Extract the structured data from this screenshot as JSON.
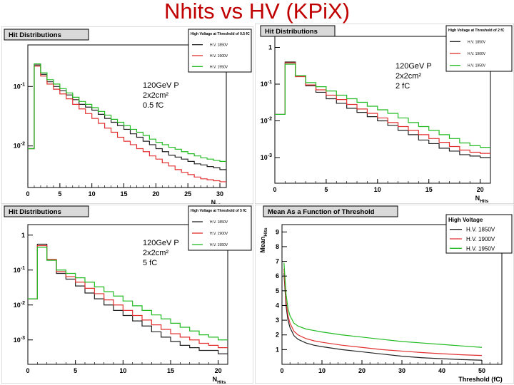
{
  "slide": {
    "title": "Nhits vs HV (KPiX)"
  },
  "panels": [
    {
      "annotation": [
        "120GeV P",
        "2x2cm²",
        "0.5 fC"
      ]
    },
    {
      "annotation": [
        "120GeV P",
        "2x2cm²",
        "2 fC"
      ]
    },
    {
      "annotation": [
        "120GeV P",
        "2x2cm²",
        "5 fC"
      ]
    },
    {
      "annotation": []
    }
  ],
  "chart_data": [
    {
      "type": "line",
      "title": "Hit Distributions",
      "legend_title": "High Voltage at Threshold of 0.5 fC",
      "legend_placement": "top-right",
      "xlabel": "N_Hits",
      "ylabel": "",
      "yscale": "log",
      "xlim": [
        0,
        31
      ],
      "ylim": [
        0.002,
        0.5
      ],
      "xticks": [
        "0",
        "5",
        "10",
        "15",
        "20",
        "25",
        "30"
      ],
      "yticks": [
        "10^-1",
        "10^-2"
      ],
      "series": [
        {
          "name": "H.V. 1850V",
          "color": "#222222",
          "x": [
            0,
            1,
            2,
            3,
            4,
            5,
            6,
            7,
            8,
            9,
            10,
            11,
            12,
            13,
            14,
            15,
            16,
            17,
            18,
            19,
            20,
            21,
            22,
            23,
            24,
            25,
            26,
            27,
            28,
            29,
            30
          ],
          "values": [
            0.009,
            0.23,
            0.16,
            0.12,
            0.1,
            0.085,
            0.072,
            0.06,
            0.05,
            0.045,
            0.04,
            0.034,
            0.029,
            0.025,
            0.022,
            0.019,
            0.016,
            0.014,
            0.012,
            0.0105,
            0.009,
            0.008,
            0.007,
            0.0065,
            0.006,
            0.0055,
            0.005,
            0.0048,
            0.0045,
            0.0043,
            0.004
          ]
        },
        {
          "name": "H.V. 1900V",
          "color": "#e23030",
          "x": [
            0,
            1,
            2,
            3,
            4,
            5,
            6,
            7,
            8,
            9,
            10,
            11,
            12,
            13,
            14,
            15,
            16,
            17,
            18,
            19,
            20,
            21,
            22,
            23,
            24,
            25,
            26,
            27,
            28,
            29,
            30
          ],
          "values": [
            0.009,
            0.22,
            0.15,
            0.11,
            0.09,
            0.075,
            0.062,
            0.05,
            0.042,
            0.035,
            0.029,
            0.024,
            0.02,
            0.017,
            0.014,
            0.012,
            0.0105,
            0.009,
            0.008,
            0.0068,
            0.006,
            0.0052,
            0.0046,
            0.004,
            0.0036,
            0.0033,
            0.003,
            0.0028,
            0.0027,
            0.0026,
            0.0025
          ]
        },
        {
          "name": "H.V. 1950V",
          "color": "#22bb22",
          "x": [
            0,
            1,
            2,
            3,
            4,
            5,
            6,
            7,
            8,
            9,
            10,
            11,
            12,
            13,
            14,
            15,
            16,
            17,
            18,
            19,
            20,
            21,
            22,
            23,
            24,
            25,
            26,
            27,
            28,
            29,
            30
          ],
          "values": [
            0.009,
            0.24,
            0.17,
            0.13,
            0.11,
            0.092,
            0.078,
            0.066,
            0.056,
            0.05,
            0.044,
            0.038,
            0.033,
            0.028,
            0.025,
            0.022,
            0.019,
            0.017,
            0.015,
            0.013,
            0.0115,
            0.0105,
            0.0095,
            0.0088,
            0.008,
            0.0074,
            0.0068,
            0.0063,
            0.006,
            0.0057,
            0.0055
          ]
        }
      ]
    },
    {
      "type": "line",
      "title": "Hit Distributions",
      "legend_title": "High Voltage at Threshold of 2 fC",
      "legend_placement": "top-right",
      "xlabel": "N_Hits",
      "ylabel": "",
      "yscale": "log",
      "xlim": [
        0,
        21
      ],
      "ylim": [
        0.0002,
        2
      ],
      "xticks": [
        "0",
        "5",
        "10",
        "15",
        "20"
      ],
      "yticks": [
        "1",
        "10^-1",
        "10^-2",
        "10^-3"
      ],
      "series": [
        {
          "name": "H.V. 1850V",
          "color": "#222222",
          "x": [
            0,
            1,
            2,
            3,
            4,
            5,
            6,
            7,
            8,
            9,
            10,
            11,
            12,
            13,
            14,
            15,
            16,
            17,
            18,
            19,
            20
          ],
          "values": [
            0.015,
            0.4,
            0.17,
            0.09,
            0.06,
            0.04,
            0.03,
            0.022,
            0.017,
            0.013,
            0.01,
            0.0075,
            0.0055,
            0.0042,
            0.003,
            0.0024,
            0.0018,
            0.0015,
            0.0012,
            0.0011,
            0.001
          ]
        },
        {
          "name": "H.V. 1900V",
          "color": "#e23030",
          "x": [
            0,
            1,
            2,
            3,
            4,
            5,
            6,
            7,
            8,
            9,
            10,
            11,
            12,
            13,
            14,
            15,
            16,
            17,
            18,
            19,
            20
          ],
          "values": [
            0.015,
            0.38,
            0.16,
            0.095,
            0.07,
            0.05,
            0.038,
            0.028,
            0.021,
            0.016,
            0.012,
            0.009,
            0.007,
            0.0055,
            0.0042,
            0.0033,
            0.0026,
            0.002,
            0.0016,
            0.0014,
            0.0013
          ]
        },
        {
          "name": "H.V. 1950V",
          "color": "#22bb22",
          "x": [
            0,
            1,
            2,
            3,
            4,
            5,
            6,
            7,
            8,
            9,
            10,
            11,
            12,
            13,
            14,
            15,
            16,
            17,
            18,
            19,
            20
          ],
          "values": [
            0.015,
            0.35,
            0.17,
            0.11,
            0.085,
            0.065,
            0.05,
            0.04,
            0.032,
            0.025,
            0.02,
            0.016,
            0.012,
            0.009,
            0.007,
            0.0055,
            0.0042,
            0.0033,
            0.0025,
            0.0021,
            0.0019
          ]
        }
      ]
    },
    {
      "type": "line",
      "title": "Hit Distributions",
      "legend_title": "High Voltage at Threshold of 5 fC",
      "legend_placement": "top-right",
      "xlabel": "N_Hits",
      "ylabel": "",
      "yscale": "log",
      "xlim": [
        0,
        21
      ],
      "ylim": [
        0.0002,
        2
      ],
      "xticks": [
        "0",
        "5",
        "10",
        "15",
        "20"
      ],
      "yticks": [
        "1",
        "10^-1",
        "10^-2",
        "10^-3"
      ],
      "series": [
        {
          "name": "H.V. 1850V",
          "color": "#222222",
          "x": [
            0,
            1,
            2,
            3,
            4,
            5,
            6,
            7,
            8,
            9,
            10,
            11,
            12,
            13,
            14,
            15,
            16,
            17,
            18,
            19,
            20
          ],
          "values": [
            0.015,
            0.55,
            0.2,
            0.08,
            0.055,
            0.035,
            0.022,
            0.015,
            0.01,
            0.007,
            0.005,
            0.0035,
            0.0025,
            0.0017,
            0.0012,
            0.0009,
            0.0007,
            0.0006,
            0.0005,
            0.0005,
            0.0004
          ]
        },
        {
          "name": "H.V. 1900V",
          "color": "#e23030",
          "x": [
            0,
            1,
            2,
            3,
            4,
            5,
            6,
            7,
            8,
            9,
            10,
            11,
            12,
            13,
            14,
            15,
            16,
            17,
            18,
            19,
            20
          ],
          "values": [
            0.015,
            0.5,
            0.2,
            0.09,
            0.065,
            0.045,
            0.03,
            0.021,
            0.014,
            0.01,
            0.007,
            0.005,
            0.0037,
            0.0027,
            0.002,
            0.0015,
            0.0012,
            0.001,
            0.0008,
            0.0007,
            0.0006
          ]
        },
        {
          "name": "H.V. 1950V",
          "color": "#22bb22",
          "x": [
            0,
            1,
            2,
            3,
            4,
            5,
            6,
            7,
            8,
            9,
            10,
            11,
            12,
            13,
            14,
            15,
            16,
            17,
            18,
            19,
            20
          ],
          "values": [
            0.015,
            0.45,
            0.19,
            0.1,
            0.08,
            0.06,
            0.045,
            0.033,
            0.024,
            0.018,
            0.013,
            0.0095,
            0.007,
            0.0052,
            0.004,
            0.003,
            0.0023,
            0.0018,
            0.0014,
            0.0012,
            0.001
          ]
        }
      ]
    },
    {
      "type": "line",
      "title": "Mean As a Function of Threshold",
      "legend_title": "High Voltage",
      "legend_placement": "top-right",
      "xlabel": "Threshold (fC)",
      "ylabel": "Mean_Hits",
      "yscale": "linear",
      "xlim": [
        0,
        55
      ],
      "ylim": [
        0,
        9.5
      ],
      "xticks": [
        "0",
        "10",
        "20",
        "30",
        "40",
        "50"
      ],
      "yticks": [
        "1",
        "2",
        "3",
        "4",
        "5",
        "6",
        "7",
        "8",
        "9"
      ],
      "series": [
        {
          "name": "H.V. 1850V",
          "color": "#222222",
          "x": [
            0.5,
            1,
            1.5,
            2,
            3,
            4,
            6,
            8,
            10,
            15,
            20,
            25,
            30,
            35,
            40,
            45,
            50
          ],
          "values": [
            6.2,
            4.0,
            3.0,
            2.5,
            1.95,
            1.7,
            1.45,
            1.3,
            1.2,
            1.0,
            0.85,
            0.7,
            0.55,
            0.45,
            0.38,
            0.32,
            0.28
          ]
        },
        {
          "name": "H.V. 1900V",
          "color": "#e23030",
          "x": [
            0.5,
            1,
            1.5,
            2,
            3,
            4,
            6,
            8,
            10,
            15,
            20,
            25,
            30,
            35,
            40,
            45,
            50
          ],
          "values": [
            6.5,
            4.3,
            3.3,
            2.8,
            2.25,
            2.0,
            1.75,
            1.6,
            1.5,
            1.3,
            1.15,
            1.0,
            0.9,
            0.8,
            0.72,
            0.65,
            0.6
          ]
        },
        {
          "name": "H.V. 1950V",
          "color": "#22bb22",
          "x": [
            0.5,
            1,
            1.5,
            2,
            3,
            4,
            6,
            8,
            10,
            15,
            20,
            25,
            30,
            35,
            40,
            45,
            50
          ],
          "values": [
            6.9,
            4.8,
            3.8,
            3.3,
            2.8,
            2.6,
            2.4,
            2.3,
            2.2,
            2.0,
            1.85,
            1.7,
            1.55,
            1.45,
            1.35,
            1.25,
            1.15
          ]
        }
      ]
    }
  ]
}
